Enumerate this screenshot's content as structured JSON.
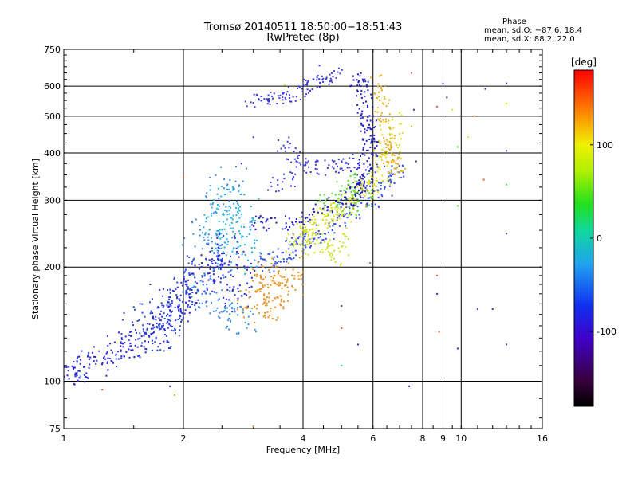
{
  "header": {
    "title_line1": "Tromsø 20140511 18:50:00−18:51:43",
    "title_line2": "RwPretec (8p)",
    "phase_title": "Phase",
    "phase_o": "mean, sd,O: −87.6, 18.4",
    "phase_x": "mean, sd,X:  88.2, 22.0"
  },
  "colorbar": {
    "unit": "[deg]",
    "min": -180,
    "max": 180,
    "ticks": [
      100,
      0,
      -100
    ],
    "colormap": "rainbow (black-violet-blue-cyan-green-yellow-red)"
  },
  "chart_data": {
    "type": "scatter",
    "title": "Tromsø 20140511 18:50:00−18:51:43",
    "subtitle": "RwPretec (8p)",
    "xlabel": "Frequency [MHz]",
    "ylabel": "Stationary phase Virtual Height [km]",
    "xscale": "log",
    "yscale": "log",
    "xlim": [
      1,
      16
    ],
    "ylim": [
      75,
      750
    ],
    "x_ticks": [
      1,
      2,
      4,
      6,
      8,
      9,
      10,
      16
    ],
    "x_tick_labels": [
      "1",
      "2",
      "4",
      "6",
      "8",
      "9",
      "10",
      "16"
    ],
    "y_ticks": [
      75,
      100,
      200,
      300,
      400,
      500,
      600,
      750
    ],
    "grid": true,
    "color_variable": "phase [deg]",
    "series": [
      {
        "color": "#2828d8",
        "phase": -100,
        "spread": [
          0.04,
          0.035
        ],
        "count": 20,
        "points": [
          [
            1.0,
            108
          ],
          [
            1.05,
            105
          ],
          [
            1.1,
            110
          ],
          [
            1.2,
            112
          ],
          [
            1.3,
            118
          ],
          [
            1.4,
            122
          ],
          [
            1.5,
            125
          ],
          [
            1.6,
            130
          ],
          [
            1.7,
            135
          ],
          [
            1.8,
            145
          ],
          [
            1.9,
            155
          ],
          [
            2.0,
            160
          ],
          [
            2.1,
            170
          ],
          [
            2.2,
            180
          ],
          [
            2.3,
            195
          ],
          [
            2.4,
            205
          ],
          [
            2.5,
            215
          ],
          [
            2.6,
            230
          ],
          [
            2.8,
            190
          ],
          [
            2.7,
            165
          ]
        ]
      },
      {
        "color": "#3050e0",
        "phase": -95,
        "spread": [
          0.03,
          0.025
        ],
        "count": 14,
        "points": [
          [
            3.2,
            205
          ],
          [
            3.4,
            210
          ],
          [
            3.6,
            212
          ],
          [
            3.8,
            222
          ],
          [
            4.0,
            232
          ],
          [
            4.2,
            240
          ],
          [
            4.5,
            250
          ],
          [
            4.8,
            260
          ],
          [
            5.2,
            275
          ],
          [
            5.6,
            290
          ],
          [
            6.0,
            305
          ],
          [
            6.3,
            320
          ],
          [
            6.5,
            340
          ],
          [
            6.8,
            355
          ]
        ]
      },
      {
        "color": "#2020c8",
        "phase": -105,
        "spread": [
          0.02,
          0.02
        ],
        "count": 12,
        "points": [
          [
            3.0,
            262
          ],
          [
            3.3,
            258
          ],
          [
            3.7,
            262
          ],
          [
            4.0,
            270
          ],
          [
            4.4,
            280
          ],
          [
            4.8,
            292
          ],
          [
            5.2,
            305
          ],
          [
            5.6,
            322
          ],
          [
            5.8,
            340
          ],
          [
            5.9,
            380
          ],
          [
            5.9,
            430
          ],
          [
            5.85,
            480
          ]
        ]
      },
      {
        "color": "#1c1cc0",
        "phase": -110,
        "spread": [
          0.02,
          0.02
        ],
        "count": 12,
        "points": [
          [
            5.5,
            620
          ],
          [
            5.6,
            600
          ],
          [
            5.7,
            560
          ],
          [
            5.75,
            510
          ],
          [
            5.8,
            470
          ],
          [
            5.8,
            430
          ],
          [
            5.75,
            390
          ],
          [
            5.7,
            360
          ],
          [
            5.6,
            340
          ],
          [
            5.5,
            325
          ],
          [
            5.4,
            315
          ],
          [
            5.2,
            300
          ]
        ]
      },
      {
        "color": "#3a3ad8",
        "phase": -100,
        "spread": [
          0.02,
          0.02
        ],
        "count": 10,
        "points": [
          [
            3.0,
            545
          ],
          [
            3.2,
            540
          ],
          [
            3.4,
            555
          ],
          [
            3.6,
            565
          ],
          [
            3.8,
            570
          ],
          [
            4.0,
            585
          ],
          [
            4.2,
            600
          ],
          [
            4.4,
            615
          ],
          [
            4.6,
            630
          ],
          [
            4.8,
            640
          ]
        ]
      },
      {
        "color": "#3a3ad8",
        "phase": -100,
        "spread": [
          0.02,
          0.02
        ],
        "count": 10,
        "points": [
          [
            3.6,
            420
          ],
          [
            3.8,
            395
          ],
          [
            4.0,
            375
          ],
          [
            4.2,
            368
          ],
          [
            4.5,
            365
          ],
          [
            4.8,
            368
          ],
          [
            5.1,
            372
          ],
          [
            5.3,
            380
          ],
          [
            3.4,
            330
          ],
          [
            3.7,
            340
          ]
        ]
      },
      {
        "color": "#28b4e0",
        "phase": -40,
        "spread": [
          0.05,
          0.05
        ],
        "count": 12,
        "points": [
          [
            2.4,
            270
          ],
          [
            2.5,
            260
          ],
          [
            2.6,
            250
          ],
          [
            2.7,
            245
          ],
          [
            2.8,
            240
          ],
          [
            2.5,
            290
          ],
          [
            2.6,
            300
          ],
          [
            2.7,
            280
          ],
          [
            2.8,
            270
          ],
          [
            2.6,
            230
          ],
          [
            2.7,
            220
          ],
          [
            2.75,
            210
          ]
        ]
      },
      {
        "color": "#3c8ae0",
        "phase": -70,
        "spread": [
          0.045,
          0.04
        ],
        "count": 12,
        "points": [
          [
            2.2,
            190
          ],
          [
            2.3,
            175
          ],
          [
            2.4,
            165
          ],
          [
            2.5,
            155
          ],
          [
            2.6,
            150
          ],
          [
            2.7,
            148
          ],
          [
            2.8,
            145
          ],
          [
            2.3,
            230
          ],
          [
            2.2,
            250
          ],
          [
            2.4,
            300
          ],
          [
            2.5,
            320
          ],
          [
            2.6,
            340
          ]
        ]
      },
      {
        "color": "#2848d0",
        "phase": -100,
        "spread": [
          0.04,
          0.035
        ],
        "count": 12,
        "points": [
          [
            1.5,
            140
          ],
          [
            1.6,
            145
          ],
          [
            1.7,
            150
          ],
          [
            1.8,
            155
          ],
          [
            1.9,
            165
          ],
          [
            2.0,
            175
          ],
          [
            2.1,
            185
          ],
          [
            2.2,
            200
          ],
          [
            1.7,
            130
          ],
          [
            1.8,
            135
          ],
          [
            1.9,
            140
          ],
          [
            2.0,
            150
          ]
        ]
      },
      {
        "color": "#e0e020",
        "phase": 110,
        "spread": [
          0.03,
          0.03
        ],
        "count": 14,
        "points": [
          [
            4.2,
            255
          ],
          [
            4.4,
            265
          ],
          [
            4.6,
            270
          ],
          [
            4.8,
            275
          ],
          [
            5.0,
            280
          ],
          [
            5.2,
            290
          ],
          [
            5.4,
            300
          ],
          [
            5.6,
            315
          ],
          [
            5.8,
            320
          ],
          [
            6.0,
            330
          ],
          [
            6.2,
            350
          ],
          [
            6.4,
            380
          ],
          [
            6.6,
            420
          ],
          [
            6.7,
            480
          ]
        ]
      },
      {
        "color": "#e8b020",
        "phase": 140,
        "spread": [
          0.02,
          0.03
        ],
        "count": 10,
        "points": [
          [
            6.2,
            600
          ],
          [
            6.3,
            560
          ],
          [
            6.35,
            520
          ],
          [
            6.4,
            480
          ],
          [
            6.45,
            440
          ],
          [
            6.5,
            420
          ],
          [
            6.6,
            400
          ],
          [
            6.7,
            390
          ],
          [
            6.8,
            380
          ],
          [
            6.9,
            360
          ]
        ]
      },
      {
        "color": "#d0e028",
        "phase": 90,
        "spread": [
          0.03,
          0.03
        ],
        "count": 10,
        "points": [
          [
            3.8,
            225
          ],
          [
            3.9,
            230
          ],
          [
            4.0,
            245
          ],
          [
            4.1,
            250
          ],
          [
            4.2,
            240
          ],
          [
            4.3,
            235
          ],
          [
            4.5,
            220
          ],
          [
            4.7,
            215
          ],
          [
            4.9,
            230
          ],
          [
            5.0,
            240
          ]
        ]
      },
      {
        "color": "#e89020",
        "phase": 150,
        "spread": [
          0.04,
          0.04
        ],
        "count": 12,
        "points": [
          [
            3.0,
            165
          ],
          [
            3.1,
            158
          ],
          [
            3.2,
            155
          ],
          [
            3.3,
            160
          ],
          [
            3.4,
            170
          ],
          [
            3.5,
            175
          ],
          [
            3.6,
            180
          ],
          [
            3.7,
            185
          ],
          [
            3.2,
            180
          ],
          [
            3.3,
            190
          ],
          [
            3.4,
            195
          ],
          [
            3.6,
            200
          ]
        ]
      },
      {
        "color": "#60e040",
        "phase": 40,
        "spread": [
          0.03,
          0.03
        ],
        "count": 8,
        "points": [
          [
            4.6,
            290
          ],
          [
            4.8,
            300
          ],
          [
            5.0,
            310
          ],
          [
            5.2,
            320
          ],
          [
            5.4,
            330
          ],
          [
            5.6,
            340
          ],
          [
            5.2,
            285
          ],
          [
            5.6,
            300
          ]
        ]
      }
    ],
    "scattered_points": [
      [
        1.25,
        95,
        "#e06030"
      ],
      [
        1.85,
        97,
        "#3030d0"
      ],
      [
        1.9,
        92,
        "#e0a020"
      ],
      [
        2.0,
        345,
        "#e06030"
      ],
      [
        1.65,
        180,
        "#2020c0"
      ],
      [
        2.8,
        375,
        "#3030d0"
      ],
      [
        3.0,
        440,
        "#3030d0"
      ],
      [
        3.6,
        605,
        "#e0e020"
      ],
      [
        4.4,
        680,
        "#3030d0"
      ],
      [
        7.5,
        650,
        "#e06030"
      ],
      [
        7.6,
        520,
        "#3030d0"
      ],
      [
        7.7,
        380,
        "#3030d0"
      ],
      [
        7.5,
        470,
        "#e0b020"
      ],
      [
        8.7,
        530,
        "#e06030"
      ],
      [
        9.0,
        610,
        "#3030d0"
      ],
      [
        9.2,
        560,
        "#3030d0"
      ],
      [
        9.5,
        520,
        "#e0e020"
      ],
      [
        9.8,
        415,
        "#60e040"
      ],
      [
        10.4,
        440,
        "#e0e020"
      ],
      [
        10.8,
        500,
        "#e0a020"
      ],
      [
        11.5,
        590,
        "#3030d0"
      ],
      [
        11.4,
        340,
        "#e06030"
      ],
      [
        13.0,
        610,
        "#3030d0"
      ],
      [
        13.0,
        540,
        "#e0e020"
      ],
      [
        13.0,
        405,
        "#3030d0"
      ],
      [
        13.0,
        330,
        "#60e040"
      ],
      [
        13.0,
        245,
        "#3030d0"
      ],
      [
        9.8,
        290,
        "#60e040"
      ],
      [
        8.7,
        190,
        "#e06030"
      ],
      [
        8.7,
        170,
        "#3030d0"
      ],
      [
        8.8,
        135,
        "#e06030"
      ],
      [
        9.8,
        122,
        "#3030d0"
      ],
      [
        12.0,
        155,
        "#3030d0"
      ],
      [
        11.0,
        155,
        "#3030d0"
      ],
      [
        13.0,
        125,
        "#3030d0"
      ],
      [
        5.5,
        125,
        "#3030d0"
      ],
      [
        5.0,
        110,
        "#28c0e0"
      ],
      [
        7.4,
        97,
        "#2020c0"
      ],
      [
        5.0,
        138,
        "#e06030"
      ],
      [
        5.0,
        158,
        "#3030d0"
      ],
      [
        5.9,
        205,
        "#e06030"
      ],
      [
        5.6,
        330,
        "#e0a020"
      ],
      [
        3.0,
        76,
        "#e0a020"
      ],
      [
        1.1,
        103,
        "#28c0e0"
      ],
      [
        2.8,
        168,
        "#3030d0"
      ]
    ]
  }
}
